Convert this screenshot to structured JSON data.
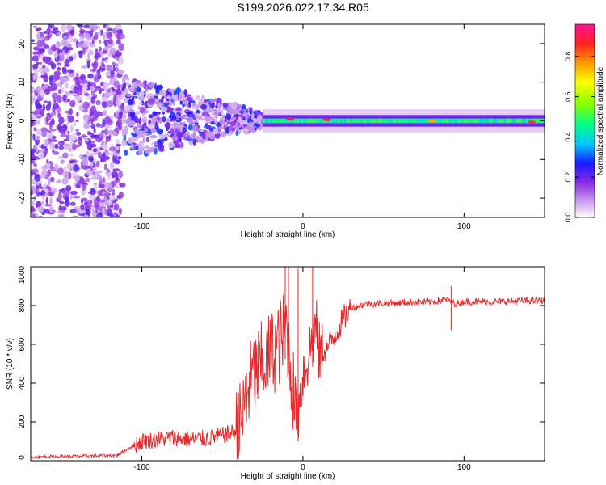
{
  "title": "S199.2026.022.17.34.R05",
  "chart_data": [
    {
      "type": "heatmap",
      "name": "spectrogram",
      "xlabel": "Height of straight line (km)",
      "ylabel": "Frequency (Hz)",
      "xlim": [
        -169,
        150
      ],
      "ylim": [
        -25,
        25
      ],
      "xticks": [
        -100,
        0,
        100
      ],
      "yticks": [
        -20,
        -10,
        0,
        10,
        20
      ],
      "colorbar": {
        "label": "Normalized spectral amplitude",
        "range": [
          0,
          0.96
        ],
        "ticks": [
          0,
          0.2,
          0.4,
          0.6,
          0.8
        ],
        "tick_labels": [
          "0.0",
          "0.2",
          "0.4",
          "0.6",
          "0.8"
        ],
        "colors": [
          "#ffffff",
          "#d9b8f2",
          "#8a2be2",
          "#1a1aff",
          "#00c8ff",
          "#00ff88",
          "#7fff00",
          "#ffff00",
          "#ff9900",
          "#ff2020",
          "#ff1493"
        ]
      },
      "regions": [
        {
          "x_range": [
            -169,
            -112
          ],
          "freq_range": [
            -25,
            25
          ],
          "amplitude": 0.05,
          "description": "broadband noise"
        },
        {
          "x_range": [
            -112,
            -25
          ],
          "freq_range": [
            -8,
            10
          ],
          "amplitude": 0.2,
          "description": "scattered signal"
        },
        {
          "x_range": [
            -25,
            150
          ],
          "freq_range": [
            -1.5,
            1.5
          ],
          "amplitude": 0.5,
          "description": "narrow carrier"
        }
      ],
      "peaks": [
        {
          "x": -8,
          "freq": 0.5,
          "amplitude": 0.9
        },
        {
          "x": 15,
          "freq": 0.3,
          "amplitude": 0.9
        },
        {
          "x": 80,
          "freq": 0,
          "amplitude": 0.75
        },
        {
          "x": 142,
          "freq": -0.3,
          "amplitude": 0.85
        }
      ]
    },
    {
      "type": "line",
      "name": "snr",
      "xlabel": "Height of straight line (km)",
      "ylabel": "SNR (10 * v/v)",
      "xlim": [
        -169,
        150
      ],
      "ylim": [
        0,
        1000
      ],
      "xticks": [
        -100,
        0,
        100
      ],
      "yticks": [
        0,
        200,
        400,
        600,
        800,
        1000
      ],
      "color": "#e8282a",
      "series": [
        {
          "name": "SNR",
          "x": [
            -169,
            -150,
            -130,
            -115,
            -105,
            -100,
            -90,
            -80,
            -70,
            -60,
            -50,
            -42,
            -38,
            -35,
            -30,
            -25,
            -20,
            -15,
            -12,
            -10,
            -8,
            -5,
            -3,
            0,
            3,
            5,
            8,
            10,
            15,
            20,
            25,
            30,
            40,
            60,
            80,
            90,
            95,
            100,
            120,
            140,
            150
          ],
          "y": [
            20,
            22,
            25,
            28,
            80,
            100,
            110,
            120,
            110,
            115,
            130,
            150,
            200,
            350,
            450,
            500,
            550,
            600,
            650,
            700,
            500,
            300,
            250,
            450,
            530,
            600,
            700,
            550,
            580,
            650,
            730,
            790,
            810,
            815,
            820,
            830,
            810,
            820,
            820,
            825,
            825
          ]
        }
      ],
      "spikes": [
        {
          "x": -40,
          "y": 350
        },
        {
          "x": -35,
          "y": 450
        },
        {
          "x": -28,
          "y": 500
        },
        {
          "x": -11,
          "y": 1000
        },
        {
          "x": -9,
          "y": 1000
        },
        {
          "x": -3,
          "y": 990
        },
        {
          "x": 6,
          "y": 1000
        },
        {
          "x": 92,
          "y": 900
        }
      ]
    }
  ]
}
